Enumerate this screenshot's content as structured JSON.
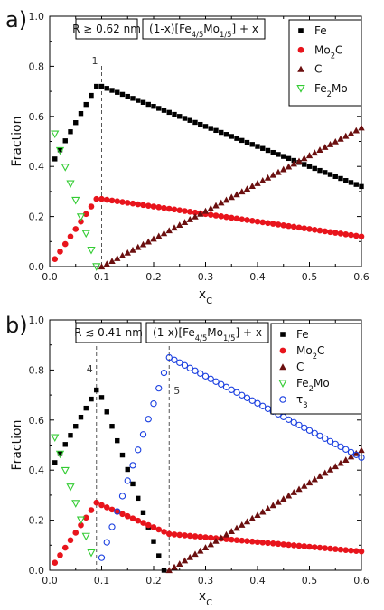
{
  "chart_data": [
    {
      "type": "scatter",
      "panel_label": "a)",
      "ylabel": "Fraction",
      "xlabel_main": "x",
      "xlabel_sub": "C",
      "xlim": [
        0,
        0.6
      ],
      "ylim": [
        0,
        1.0
      ],
      "x_ticks": [
        "0.0",
        "0.1",
        "0.2",
        "0.3",
        "0.4",
        "0.5",
        "0.6"
      ],
      "y_ticks": [
        "0.0",
        "0.2",
        "0.4",
        "0.6",
        "0.8",
        "1.0"
      ],
      "radius_box": "R ≳ 0.62 nm",
      "formula_box": {
        "pre": "(1-x)[Fe",
        "s1": "4/5",
        "mid": "Mo",
        "s2": "1/5",
        "post": "] + x"
      },
      "vline": {
        "x": 0.1,
        "label": "1"
      },
      "legend": [
        {
          "name": "Fe",
          "marker": "square",
          "color": "#000000"
        },
        {
          "name": "Mo",
          "sub": "2",
          "tail": "C",
          "marker": "circle",
          "color": "#e8141c"
        },
        {
          "name": "C",
          "marker": "triangle-up",
          "color": "#6b0f0f"
        },
        {
          "name": "Fe",
          "sub": "2",
          "tail": "Mo",
          "marker": "triangle-down-open",
          "color": "#33cc33"
        }
      ],
      "series": [
        {
          "name": "Fe",
          "marker": "square",
          "color": "#000000",
          "segments": [
            {
              "x0": 0.01,
              "x1": 0.09,
              "y0": 0.43,
              "y1": 0.72,
              "n": 9
            },
            {
              "x0": 0.1,
              "x1": 0.6,
              "y0": 0.72,
              "y1": 0.32,
              "n": 51
            }
          ]
        },
        {
          "name": "Mo2C",
          "marker": "circle",
          "color": "#e8141c",
          "segments": [
            {
              "x0": 0.01,
              "x1": 0.09,
              "y0": 0.03,
              "y1": 0.27,
              "n": 9
            },
            {
              "x0": 0.1,
              "x1": 0.6,
              "y0": 0.27,
              "y1": 0.12,
              "n": 51
            }
          ]
        },
        {
          "name": "C",
          "marker": "triangle-up",
          "color": "#6b0f0f",
          "segments": [
            {
              "x0": 0.1,
              "x1": 0.6,
              "y0": 0.0,
              "y1": 0.555,
              "n": 51
            }
          ]
        },
        {
          "name": "Fe2Mo",
          "marker": "triangle-down-open",
          "color": "#33cc33",
          "segments": [
            {
              "x0": 0.01,
              "x1": 0.09,
              "y0": 0.53,
              "y1": 0.0,
              "n": 9
            }
          ]
        }
      ]
    },
    {
      "type": "scatter",
      "panel_label": "b)",
      "ylabel": "Fraction",
      "xlabel_main": "x",
      "xlabel_sub": "C",
      "xlim": [
        0,
        0.6
      ],
      "ylim": [
        0,
        1.0
      ],
      "x_ticks": [
        "0.0",
        "0.1",
        "0.2",
        "0.3",
        "0.4",
        "0.5",
        "0.6"
      ],
      "y_ticks": [
        "0.0",
        "0.2",
        "0.4",
        "0.6",
        "0.8",
        "1.0"
      ],
      "radius_box": "R ≲ 0.41 nm",
      "formula_box": {
        "pre": "(1-x)[Fe",
        "s1": "4/5",
        "mid": "Mo",
        "s2": "1/5",
        "post": "] + x"
      },
      "vlines": [
        {
          "x": 0.09,
          "label": "4"
        },
        {
          "x": 0.23,
          "label": "5"
        }
      ],
      "legend": [
        {
          "name": "Fe",
          "marker": "square",
          "color": "#000000"
        },
        {
          "name": "Mo",
          "sub": "2",
          "tail": "C",
          "marker": "circle",
          "color": "#e8141c"
        },
        {
          "name": "C",
          "marker": "triangle-up",
          "color": "#6b0f0f"
        },
        {
          "name": "Fe",
          "sub": "2",
          "tail": "Mo",
          "marker": "triangle-down-open",
          "color": "#33cc33"
        },
        {
          "name": "τ",
          "sub": "3",
          "tail": "",
          "marker": "circle-open",
          "color": "#1a3fe0"
        }
      ],
      "series": [
        {
          "name": "Fe",
          "marker": "square",
          "color": "#000000",
          "segments": [
            {
              "x0": 0.01,
              "x1": 0.09,
              "y0": 0.43,
              "y1": 0.72,
              "n": 9
            },
            {
              "x0": 0.1,
              "x1": 0.22,
              "y0": 0.69,
              "y1": 0.0,
              "n": 13
            }
          ]
        },
        {
          "name": "Mo2C",
          "marker": "circle",
          "color": "#e8141c",
          "segments": [
            {
              "x0": 0.01,
              "x1": 0.09,
              "y0": 0.03,
              "y1": 0.27,
              "n": 9
            },
            {
              "x0": 0.1,
              "x1": 0.23,
              "y0": 0.26,
              "y1": 0.145,
              "n": 14
            },
            {
              "x0": 0.24,
              "x1": 0.6,
              "y0": 0.143,
              "y1": 0.075,
              "n": 37
            }
          ]
        },
        {
          "name": "C",
          "marker": "triangle-up",
          "color": "#6b0f0f",
          "segments": [
            {
              "x0": 0.23,
              "x1": 0.6,
              "y0": 0.0,
              "y1": 0.48,
              "n": 38
            }
          ]
        },
        {
          "name": "Fe2Mo",
          "marker": "triangle-down-open",
          "color": "#33cc33",
          "segments": [
            {
              "x0": 0.01,
              "x1": 0.08,
              "y0": 0.53,
              "y1": 0.07,
              "n": 8
            }
          ]
        },
        {
          "name": "tau3",
          "marker": "circle-open",
          "color": "#1a3fe0",
          "segments": [
            {
              "x0": 0.1,
              "x1": 0.23,
              "y0": 0.05,
              "y1": 0.85,
              "n": 14
            },
            {
              "x0": 0.24,
              "x1": 0.6,
              "y0": 0.84,
              "y1": 0.45,
              "n": 37
            }
          ]
        }
      ]
    }
  ]
}
